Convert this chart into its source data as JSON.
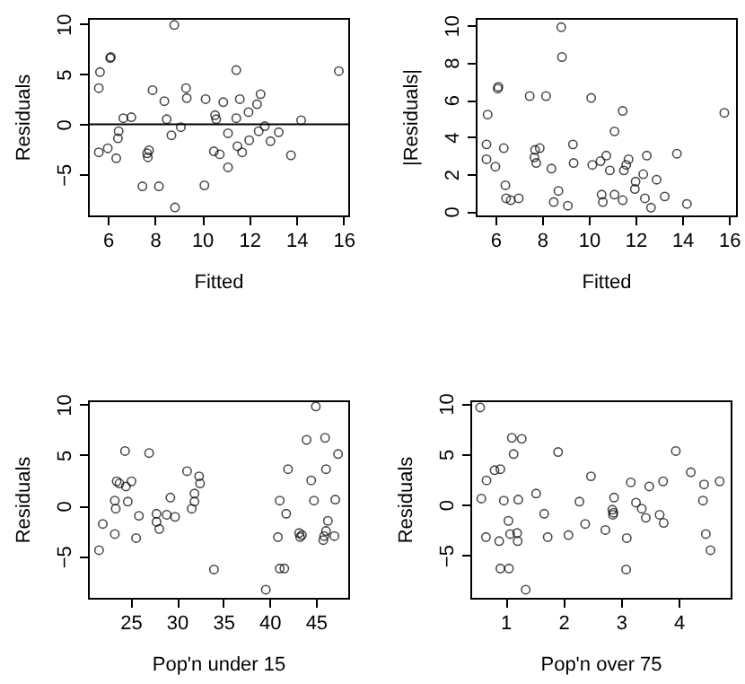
{
  "chart_data": [
    {
      "type": "scatter",
      "xlabel": "Fitted",
      "ylabel": "Residuals",
      "color": "#000000",
      "marker": "circle",
      "xlim": [
        5.16,
        16.2
      ],
      "ylim": [
        -9.1,
        10.6
      ],
      "xticks": [
        6,
        8,
        10,
        12,
        14,
        16
      ],
      "yticks": [
        -5,
        0,
        5,
        10
      ],
      "ref_lines": [
        {
          "axis": "y",
          "value": 0,
          "color": "#000000"
        }
      ],
      "x": [
        5.62,
        5.67,
        6.13,
        6.1,
        5.62,
        6.0,
        6.36,
        6.46,
        6.43,
        6.66,
        7.0,
        7.47,
        7.9,
        7.67,
        7.75,
        7.7,
        8.17,
        8.4,
        8.5,
        8.7,
        8.82,
        8.85,
        9.1,
        9.35,
        9.32,
        10.1,
        10.15,
        10.5,
        10.55,
        10.6,
        10.75,
        10.9,
        11.1,
        11.1,
        11.45,
        11.45,
        11.5,
        11.6,
        11.7,
        11.97,
        12.0,
        12.33,
        12.4,
        12.48,
        12.66,
        12.9,
        13.25,
        13.77,
        14.2,
        15.8
      ],
      "values": [
        3.6,
        5.2,
        6.7,
        6.6,
        -2.8,
        -2.4,
        -3.4,
        -0.7,
        -1.4,
        0.6,
        0.7,
        -6.2,
        3.4,
        -2.9,
        -2.6,
        -3.3,
        -6.2,
        2.3,
        0.5,
        -1.1,
        9.9,
        -8.3,
        -0.3,
        2.6,
        3.6,
        -6.1,
        2.5,
        -2.7,
        0.9,
        0.5,
        -3.0,
        2.2,
        -0.9,
        -4.3,
        5.4,
        0.6,
        -2.2,
        2.5,
        -2.8,
        1.2,
        -1.6,
        2.0,
        -0.7,
        3.0,
        -0.2,
        -1.7,
        -0.8,
        -3.1,
        0.4,
        5.3
      ]
    },
    {
      "type": "scatter",
      "xlabel": "Fitted",
      "ylabel": "|Residuals|",
      "color": "#000000",
      "marker": "circle",
      "xlim": [
        5.16,
        16.3
      ],
      "ylim": [
        -0.22,
        10.4
      ],
      "xticks": [
        6,
        8,
        10,
        12,
        14,
        16
      ],
      "yticks": [
        0,
        2,
        4,
        6,
        8,
        10
      ],
      "x": [
        5.62,
        5.67,
        6.13,
        6.1,
        5.62,
        6.0,
        6.36,
        6.46,
        6.43,
        6.66,
        7.0,
        7.47,
        7.9,
        7.67,
        7.75,
        7.7,
        8.17,
        8.4,
        8.5,
        8.7,
        8.82,
        8.85,
        9.1,
        9.35,
        9.32,
        10.1,
        10.15,
        10.5,
        10.55,
        10.6,
        10.75,
        10.9,
        11.1,
        11.1,
        11.45,
        11.45,
        11.5,
        11.6,
        11.7,
        11.97,
        12.0,
        12.33,
        12.4,
        12.48,
        12.66,
        12.9,
        13.25,
        13.77,
        14.2,
        15.8
      ],
      "values": [
        3.6,
        5.2,
        6.7,
        6.6,
        2.8,
        2.4,
        3.4,
        0.7,
        1.4,
        0.6,
        0.7,
        6.2,
        3.4,
        2.9,
        2.6,
        3.3,
        6.2,
        2.3,
        0.5,
        1.1,
        9.9,
        8.3,
        0.3,
        2.6,
        3.6,
        6.1,
        2.5,
        2.7,
        0.9,
        0.5,
        3.0,
        2.2,
        0.9,
        4.3,
        5.4,
        0.6,
        2.2,
        2.5,
        2.8,
        1.2,
        1.6,
        2.0,
        0.7,
        3.0,
        0.2,
        1.7,
        0.8,
        3.1,
        0.4,
        5.3
      ]
    },
    {
      "type": "scatter",
      "xlabel": "Pop'n under 15",
      "ylabel": "Residuals",
      "color": "#000000",
      "marker": "circle",
      "xlim": [
        20.4,
        48.5
      ],
      "ylim": [
        -9.1,
        10.4
      ],
      "xticks": [
        25,
        30,
        35,
        40,
        45
      ],
      "yticks": [
        -5,
        0,
        5,
        10
      ],
      "x": [
        21.6,
        22.0,
        23.3,
        23.4,
        23.3,
        23.5,
        23.8,
        24.4,
        24.5,
        24.7,
        25.1,
        25.6,
        25.9,
        27.0,
        27.8,
        27.8,
        28.1,
        28.9,
        29.3,
        29.8,
        31.1,
        31.6,
        31.9,
        31.9,
        32.4,
        32.5,
        34.0,
        39.6,
        40.9,
        41.1,
        41.1,
        41.6,
        41.8,
        42.0,
        43.2,
        43.3,
        43.5,
        44.0,
        44.5,
        44.8,
        45.0,
        45.8,
        45.9,
        46.0,
        46.1,
        46.1,
        46.3,
        47.0,
        47.1,
        47.4
      ],
      "values": [
        -4.4,
        -1.8,
        0.5,
        -0.3,
        -2.8,
        2.4,
        2.2,
        5.4,
        1.9,
        0.4,
        2.4,
        -3.2,
        -1.0,
        5.2,
        -0.8,
        -1.6,
        -2.3,
        -0.9,
        0.8,
        -1.1,
        3.4,
        -0.3,
        0.4,
        1.2,
        2.9,
        2.2,
        -6.3,
        -8.3,
        -3.1,
        0.5,
        -6.2,
        -6.2,
        -0.8,
        3.6,
        -2.7,
        -3.1,
        -2.9,
        6.5,
        2.5,
        0.5,
        9.8,
        -3.4,
        -3.0,
        6.7,
        -2.5,
        3.6,
        -1.5,
        -3.0,
        0.6,
        5.1
      ]
    },
    {
      "type": "scatter",
      "xlabel": "Pop'n over 75",
      "ylabel": "Residuals",
      "color": "#000000",
      "marker": "circle",
      "xlim": [
        0.39,
        4.9
      ],
      "ylim": [
        -9.2,
        10.3
      ],
      "xticks": [
        1,
        2,
        3,
        4
      ],
      "yticks": [
        -5,
        0,
        5,
        10
      ],
      "x": [
        0.56,
        0.58,
        0.67,
        0.66,
        0.81,
        0.89,
        0.91,
        0.91,
        0.97,
        1.05,
        1.06,
        1.08,
        1.11,
        1.14,
        1.2,
        1.21,
        1.22,
        1.28,
        1.35,
        1.53,
        1.67,
        1.73,
        1.91,
        2.09,
        2.28,
        2.38,
        2.48,
        2.73,
        2.85,
        2.86,
        2.87,
        2.88,
        3.1,
        3.09,
        3.17,
        3.26,
        3.36,
        3.43,
        3.49,
        3.67,
        3.74,
        3.73,
        3.95,
        4.21,
        4.42,
        4.44,
        4.47,
        4.55,
        4.71
      ],
      "values": [
        9.6,
        0.6,
        2.4,
        -3.2,
        3.4,
        -3.6,
        3.5,
        -6.3,
        0.4,
        -1.6,
        -6.3,
        -2.9,
        6.6,
        5.0,
        -2.8,
        -3.6,
        0.5,
        6.5,
        -8.4,
        1.1,
        -0.9,
        -3.2,
        5.2,
        -3.0,
        0.3,
        -1.9,
        2.8,
        -2.5,
        -0.5,
        -1.0,
        -0.8,
        0.7,
        -3.3,
        -6.4,
        2.2,
        0.2,
        -0.4,
        -1.3,
        1.8,
        -1.0,
        -1.8,
        2.3,
        5.3,
        3.2,
        0.4,
        2.0,
        -2.9,
        -4.5,
        2.3
      ]
    }
  ]
}
